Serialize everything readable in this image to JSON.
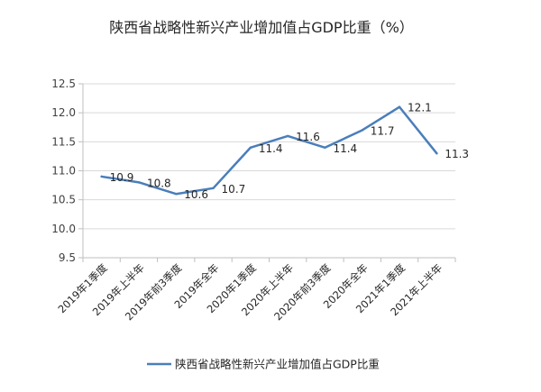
{
  "chart_data": {
    "type": "line",
    "title": "陕西省战略性新兴产业增加值占GDP比重（%）",
    "categories": [
      "2019年1季度",
      "2019年上半年",
      "2019年前3季度",
      "2019年全年",
      "2020年1季度",
      "2020年上半年",
      "2020年前3季度",
      "2020年全年",
      "2021年1季度",
      "2021年上半年"
    ],
    "series": [
      {
        "name": "陕西省战略性新兴产业增加值占GDP比重",
        "values": [
          10.9,
          10.8,
          10.6,
          10.7,
          11.4,
          11.6,
          11.4,
          11.7,
          12.1,
          11.3
        ],
        "color": "#4a7ebb"
      }
    ],
    "ylim": [
      9.5,
      12.5
    ],
    "yticks": [
      "9.5",
      "10.0",
      "10.5",
      "11.0",
      "11.5",
      "12.0",
      "12.5"
    ],
    "grid": true,
    "data_labels": true,
    "legend": "bottom"
  }
}
